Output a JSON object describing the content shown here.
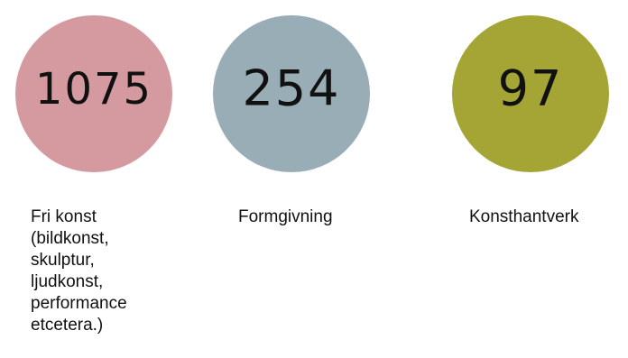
{
  "chart_data": {
    "type": "bubble",
    "categories": [
      "Fri konst\n(bildkonst,\nskulptur,\nljudkonst,\nperformance\netcetera.)",
      "Formgivning",
      "Konsthantverk"
    ],
    "values": [
      1075,
      254,
      97
    ],
    "colors": [
      "#d59aa0",
      "#98adb5",
      "#a4a535"
    ],
    "title": "",
    "xlabel": "",
    "ylabel": ""
  }
}
